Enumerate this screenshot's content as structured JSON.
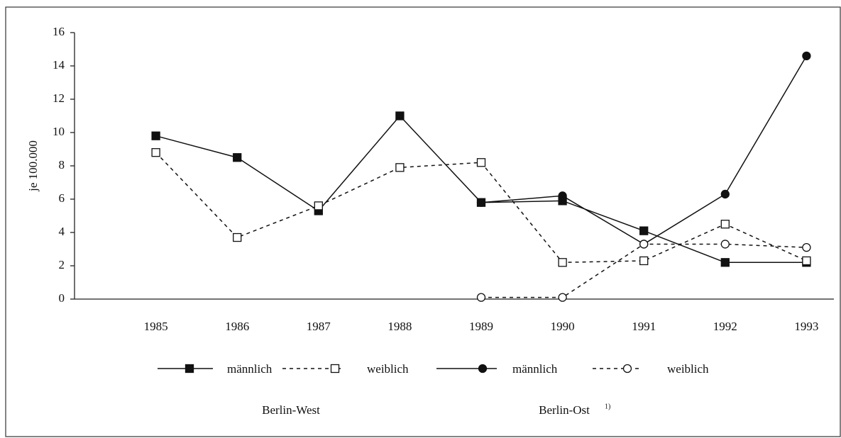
{
  "chart_data": {
    "type": "line",
    "y_label": "je 100.000",
    "categories": [
      "1985",
      "1986",
      "1987",
      "1988",
      "1989",
      "1990",
      "1991",
      "1992",
      "1993"
    ],
    "series": [
      {
        "name": "männlich",
        "color": "#111111",
        "marker": "square-filled",
        "line": "solid",
        "values": [
          9.8,
          8.5,
          5.3,
          11.0,
          5.8,
          5.9,
          4.1,
          2.2,
          2.2
        ]
      },
      {
        "name": "weiblich",
        "color": "#111111",
        "marker": "square-open",
        "line": "dashed",
        "values": [
          8.8,
          3.7,
          5.6,
          7.9,
          8.2,
          2.2,
          2.3,
          4.5,
          2.3
        ]
      },
      {
        "name": "männlich",
        "color": "#111111",
        "marker": "circle-filled",
        "line": "solid",
        "values": [
          null,
          null,
          null,
          null,
          5.8,
          6.2,
          3.3,
          6.3,
          14.6
        ]
      },
      {
        "name": "weiblich",
        "color": "#111111",
        "marker": "circle-open",
        "line": "dashed",
        "values": [
          null,
          null,
          null,
          null,
          0.1,
          0.1,
          3.3,
          3.3,
          3.1
        ]
      }
    ],
    "legend_groups": [
      {
        "label": "Berlin-West"
      },
      {
        "label": "Berlin-Ost",
        "footnote": "1)"
      }
    ],
    "ylim": [
      0,
      16
    ],
    "yticks": [
      0,
      2,
      4,
      6,
      8,
      10,
      12,
      14,
      16
    ],
    "grid": false
  }
}
